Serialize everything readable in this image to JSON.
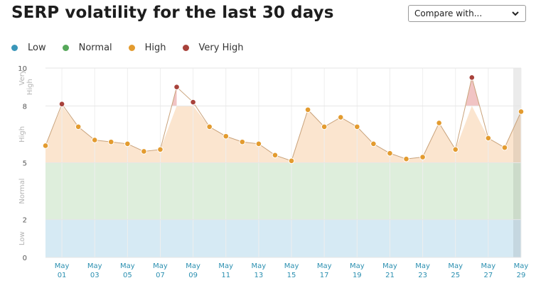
{
  "header": {
    "title": "SERP volatility for the last 30 days",
    "compare_label": "Compare with..."
  },
  "legend": [
    {
      "label": "Low",
      "color": "#3a96b9"
    },
    {
      "label": "Normal",
      "color": "#56a85a"
    },
    {
      "label": "High",
      "color": "#e39b2f"
    },
    {
      "label": "Very High",
      "color": "#a8423b"
    }
  ],
  "chart_data": {
    "type": "area",
    "title": "SERP volatility for the last 30 days",
    "ylim": [
      0,
      10
    ],
    "y_ticks": [
      0,
      2,
      5,
      8,
      10
    ],
    "bands": [
      {
        "name": "Low",
        "from": 0,
        "to": 2,
        "color": "#d6eaf4"
      },
      {
        "name": "Normal",
        "from": 2,
        "to": 5,
        "color": "#deeedc"
      },
      {
        "name": "High",
        "from": 5,
        "to": 8,
        "color": "#fbe5cf"
      },
      {
        "name": "Very High",
        "from": 8,
        "to": 10,
        "color": "#f3c9c9"
      }
    ],
    "band_labels": [
      {
        "text": "Low",
        "y": 1
      },
      {
        "text": "Normal",
        "y": 3.5
      },
      {
        "text": "High",
        "y": 6.5
      },
      {
        "text": "Very",
        "y": 9.5
      },
      {
        "text": "High",
        "y": 9.0
      }
    ],
    "x_labels": [
      [
        "May",
        "01"
      ],
      [
        "May",
        "03"
      ],
      [
        "May",
        "05"
      ],
      [
        "May",
        "07"
      ],
      [
        "May",
        "09"
      ],
      [
        "May",
        "11"
      ],
      [
        "May",
        "13"
      ],
      [
        "May",
        "15"
      ],
      [
        "May",
        "17"
      ],
      [
        "May",
        "19"
      ],
      [
        "May",
        "21"
      ],
      [
        "May",
        "23"
      ],
      [
        "May",
        "25"
      ],
      [
        "May",
        "27"
      ],
      [
        "May",
        "29"
      ]
    ],
    "x": [
      "Apr 30",
      "May 01",
      "May 02",
      "May 03",
      "May 04",
      "May 05",
      "May 06",
      "May 07",
      "May 08",
      "May 09",
      "May 10",
      "May 11",
      "May 12",
      "May 13",
      "May 14",
      "May 15",
      "May 16",
      "May 17",
      "May 18",
      "May 19",
      "May 20",
      "May 21",
      "May 22",
      "May 23",
      "May 24",
      "May 25",
      "May 26",
      "May 27",
      "May 28",
      "May 29"
    ],
    "values": [
      5.9,
      8.1,
      6.9,
      6.2,
      6.1,
      6.0,
      5.6,
      5.7,
      9.0,
      8.2,
      6.9,
      6.4,
      6.1,
      6.0,
      5.4,
      5.1,
      7.8,
      6.9,
      7.4,
      6.9,
      6.0,
      5.5,
      5.2,
      5.3,
      7.1,
      5.7,
      9.5,
      6.3,
      5.8,
      7.7
    ],
    "line_color": "#c9a27a",
    "high_color": "#e39b2f",
    "very_high_color": "#a8423b",
    "grid": true
  }
}
